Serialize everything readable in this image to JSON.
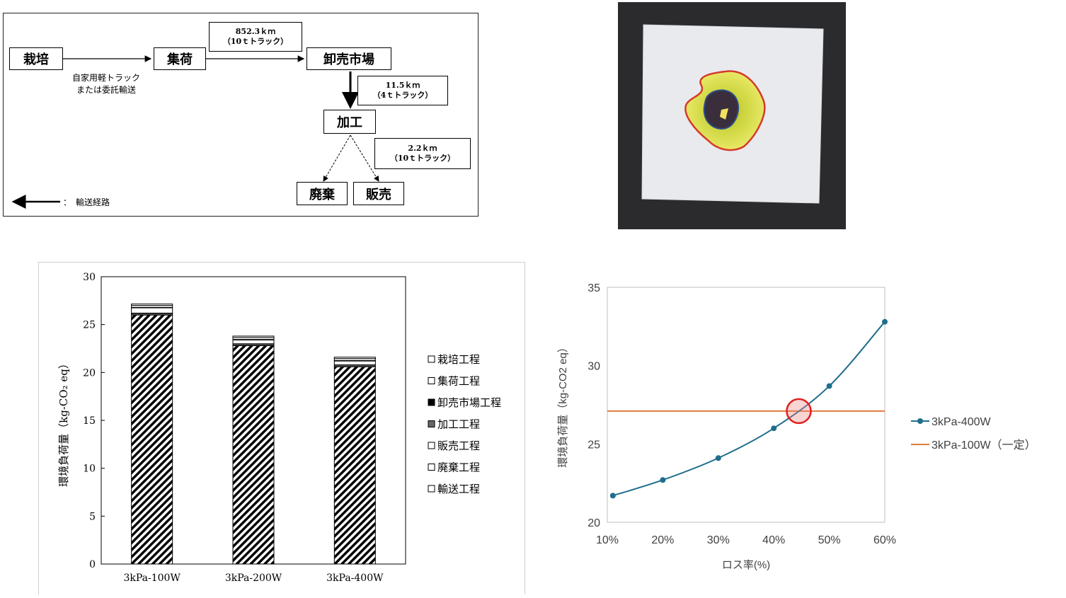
{
  "flow": {
    "nodes": {
      "cultivation": "栽培",
      "collection": "集荷",
      "wholesale": "卸売市場",
      "processing": "加工",
      "disposal": "廃棄",
      "sales": "販売"
    },
    "notes": {
      "route1_line1": "852.3ｋｍ",
      "route1_line2": "（10ｔトラック）",
      "route2_line1": "11.5ｋｍ",
      "route2_line2": "（4ｔトラック）",
      "route3_line1": "2.2ｋｍ",
      "route3_line2": "（10ｔトラック）"
    },
    "own_truck_line1": "自家用軽トラック",
    "own_truck_line2": "または委託輸送",
    "legend_label": "：　輸送経路"
  },
  "chart_data": [
    {
      "type": "bar",
      "stacked": true,
      "categories": [
        "3kPa-100W",
        "3kPa-200W",
        "3kPa-400W"
      ],
      "ylabel": "環境負荷量（kg-CO₂ eq）",
      "ylim": [
        0,
        30
      ],
      "yticks": [
        "0",
        "5",
        "10",
        "15",
        "20",
        "25",
        "30"
      ],
      "grid": false,
      "legend_position": "right",
      "series": [
        {
          "name": "栽培工程",
          "values": [
            0.15,
            0.15,
            0.15
          ]
        },
        {
          "name": "集荷工程",
          "values": [
            0.2,
            0.2,
            0.2
          ]
        },
        {
          "name": "卸売市場工程",
          "values": [
            0.05,
            0.05,
            0.05
          ]
        },
        {
          "name": "加工工程",
          "values": [
            26.0,
            22.8,
            20.6
          ]
        },
        {
          "name": "販売工程",
          "values": [
            0.1,
            0.1,
            0.1
          ]
        },
        {
          "name": "廃棄工程",
          "values": [
            0.1,
            0.1,
            0.1
          ]
        },
        {
          "name": "輸送工程",
          "values": [
            0.55,
            0.4,
            0.4
          ]
        }
      ]
    },
    {
      "type": "line",
      "x": [
        "10%",
        "20%",
        "30%",
        "40%",
        "50%",
        "60%"
      ],
      "xvalues": [
        11,
        20,
        30,
        40,
        50,
        60
      ],
      "xlim": [
        10,
        60
      ],
      "xlabel": "ロス率(%)",
      "ylabel": "環境負荷量（kg-CO2 eq）",
      "ylim": [
        20,
        35
      ],
      "yticks": [
        "20",
        "25",
        "30",
        "35"
      ],
      "legend_position": "right",
      "highlight": {
        "x": 44.5,
        "y": 27.1
      },
      "series": [
        {
          "name": "3kPa-400W",
          "values": [
            21.7,
            22.7,
            24.1,
            26.0,
            28.7,
            32.8
          ],
          "color": "#1f6e8c"
        },
        {
          "name": "3kPa-100W（一定）",
          "values": [
            27.1,
            27.1
          ],
          "x": [
            10,
            60
          ],
          "color": "#e07b39"
        }
      ]
    }
  ]
}
